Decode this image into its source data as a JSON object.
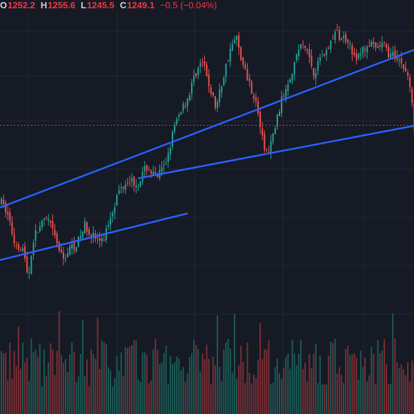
{
  "legend": {
    "open_label": "O",
    "open_value": "1252.2",
    "high_label": "H",
    "high_value": "1255.6",
    "low_label": "L",
    "low_value": "1245.5",
    "close_label": "C",
    "close_value": "1249.1",
    "change": "−0.5 (−0.04%)"
  },
  "colors": {
    "background": "#161a25",
    "grid": "#232734",
    "up": "#26a69a",
    "down": "#ef5350",
    "volume_up": "#1c5a55",
    "volume_down": "#7a2e33",
    "trendline": "#2962ff",
    "price_line": "#f23645"
  },
  "chart_data": {
    "type": "candlestick",
    "last_close": 1249.1,
    "ohlc_last": {
      "open": 1252.2,
      "high": 1255.6,
      "low": 1245.5,
      "close": 1249.1
    },
    "visible_price_range": [
      1215,
      1267
    ],
    "close_path": [
      [
        0,
        1236
      ],
      [
        10,
        1234
      ],
      [
        20,
        1229
      ],
      [
        32,
        1228
      ],
      [
        40,
        1223
      ],
      [
        48,
        1230
      ],
      [
        58,
        1232
      ],
      [
        68,
        1233
      ],
      [
        78,
        1230
      ],
      [
        90,
        1226
      ],
      [
        100,
        1228
      ],
      [
        112,
        1229
      ],
      [
        122,
        1232
      ],
      [
        135,
        1230
      ],
      [
        148,
        1229
      ],
      [
        160,
        1234
      ],
      [
        172,
        1238
      ],
      [
        185,
        1240
      ],
      [
        198,
        1239
      ],
      [
        212,
        1242
      ],
      [
        225,
        1240
      ],
      [
        238,
        1242
      ],
      [
        250,
        1248
      ],
      [
        262,
        1252
      ],
      [
        272,
        1254
      ],
      [
        282,
        1258
      ],
      [
        292,
        1260
      ],
      [
        302,
        1256
      ],
      [
        312,
        1252
      ],
      [
        322,
        1257
      ],
      [
        332,
        1262
      ],
      [
        342,
        1264
      ],
      [
        352,
        1259
      ],
      [
        362,
        1256
      ],
      [
        372,
        1252
      ],
      [
        380,
        1246
      ],
      [
        388,
        1244
      ],
      [
        396,
        1248
      ],
      [
        404,
        1252
      ],
      [
        414,
        1256
      ],
      [
        424,
        1259
      ],
      [
        434,
        1263
      ],
      [
        444,
        1262
      ],
      [
        454,
        1258
      ],
      [
        464,
        1261
      ],
      [
        474,
        1262
      ],
      [
        484,
        1265
      ],
      [
        494,
        1264
      ],
      [
        504,
        1264
      ],
      [
        514,
        1260
      ],
      [
        524,
        1262
      ],
      [
        534,
        1263
      ],
      [
        544,
        1262
      ],
      [
        554,
        1263
      ],
      [
        564,
        1261
      ],
      [
        574,
        1261
      ],
      [
        584,
        1259
      ],
      [
        592,
        1257
      ],
      [
        599,
        1249.1
      ]
    ],
    "trendlines": [
      {
        "name": "upper-channel",
        "from": [
          0,
          1235
        ],
        "to": [
          600,
          1262
        ]
      },
      {
        "name": "lower-channel",
        "from": [
          0,
          1226
        ],
        "to": [
          272,
          1234
        ]
      },
      {
        "name": "support-line",
        "from": [
          200,
          1240
        ],
        "to": [
          600,
          1249
        ]
      }
    ]
  }
}
